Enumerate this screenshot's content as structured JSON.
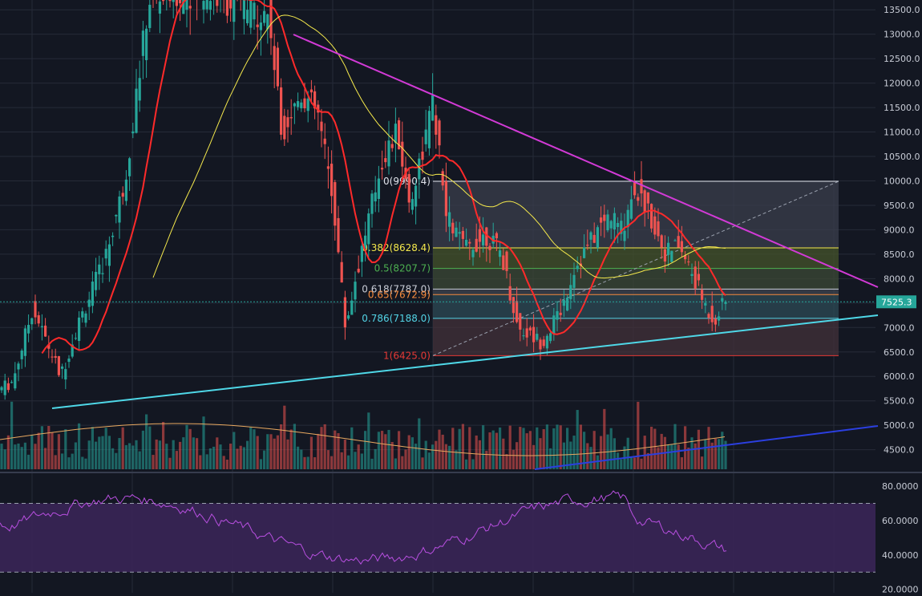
{
  "chart_data": {
    "type": "candlestick",
    "title": "",
    "price_axis": {
      "range": [
        4100,
        13700
      ],
      "ticks": [
        "13500.0",
        "13000.0",
        "12500.0",
        "12000.0",
        "11500.0",
        "11000.0",
        "10500.0",
        "10000.0",
        "9500.0",
        "9000.0",
        "8500.0",
        "8000.0",
        "7500.0",
        "7000.0",
        "6500.0",
        "6000.0",
        "5500.0",
        "5000.0",
        "4500.0"
      ],
      "current_price": "7525.3",
      "current_price_value": 7525.3
    },
    "fibonacci": [
      {
        "level": "0",
        "value": 9990.4,
        "label": "0(9990.4)",
        "color": "#e0e3eb"
      },
      {
        "level": "0.382",
        "value": 8628.4,
        "label": "0.382(8628.4)",
        "color": "#f5e94c"
      },
      {
        "level": "0.5",
        "value": 8207.7,
        "label": "0.5(8207.7)",
        "color": "#4caf50"
      },
      {
        "level": "0.618",
        "value": 7787.0,
        "label": "0.618(7787.0)",
        "color": "#c8ccd6"
      },
      {
        "level": "0.65",
        "value": 7672.9,
        "label": "0.65(7672.9)",
        "color": "#f58a3c"
      },
      {
        "level": "0.786",
        "value": 7188.0,
        "label": "0.786(7188.0)",
        "color": "#53d4e6"
      },
      {
        "level": "1",
        "value": 6425.0,
        "label": "1(6425.0)",
        "color": "#e53935"
      }
    ],
    "rsi_axis": {
      "range": [
        18,
        87
      ],
      "ticks": [
        "80.0000",
        "60.0000",
        "40.0000",
        "20.0000"
      ],
      "overbought": 70,
      "oversold": 30
    },
    "colors": {
      "background": "#131722",
      "grid": "#262b38",
      "candle_up": "#26a69a",
      "candle_down": "#ef5350",
      "ma_short": "#ff2a2a",
      "ma_long": "#f5e94c",
      "vol_ma": "#e8a860",
      "downtrend": "#d23ad6",
      "uptrend_support": "#4fd8e8",
      "volume_trend": "#2b3fe0",
      "rsi_line": "#b84fe0",
      "rsi_band": "#3a2556",
      "current_price_tag": "#26a69a"
    }
  }
}
